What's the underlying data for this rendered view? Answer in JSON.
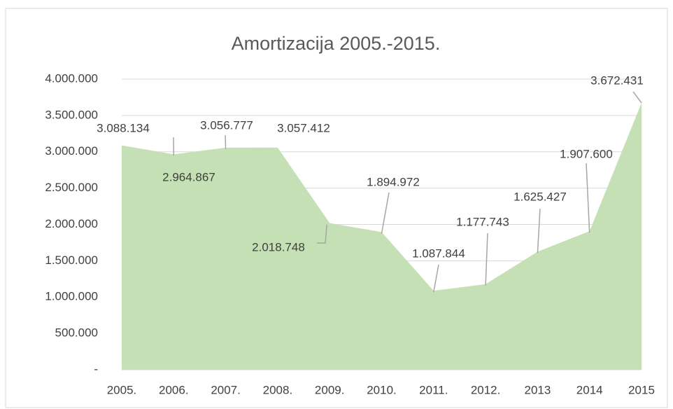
{
  "chart_data": {
    "type": "area",
    "title": "Amortizacija 2005.-2015.",
    "categories": [
      "2005.",
      "2006.",
      "2007.",
      "2008.",
      "2009.",
      "2010.",
      "2011.",
      "2012.",
      "2013",
      "2014",
      "2015"
    ],
    "values": [
      3088134,
      2964867,
      3056777,
      3057412,
      2018748,
      1894972,
      1087844,
      1177743,
      1625427,
      1907600,
      3672431
    ],
    "value_labels": [
      "3.088.134",
      "2.964.867",
      "3.056.777",
      "3.057.412",
      "2.018.748",
      "1.894.972",
      "1.087.844",
      "1.177.743",
      "1.625.427",
      "1.907.600",
      "3.672.431"
    ],
    "color": "#c5e0b4",
    "ylim": [
      0,
      4000000
    ],
    "yticks": [
      {
        "value": 0,
        "label": "-"
      },
      {
        "value": 500000,
        "label": "500.000"
      },
      {
        "value": 1000000,
        "label": "1.000.000"
      },
      {
        "value": 1500000,
        "label": "1.500.000"
      },
      {
        "value": 2000000,
        "label": "2.000.000"
      },
      {
        "value": 2500000,
        "label": "2.500.000"
      },
      {
        "value": 3000000,
        "label": "3.000.000"
      },
      {
        "value": 3500000,
        "label": "3.500.000"
      },
      {
        "value": 4000000,
        "label": "4.000.000"
      }
    ],
    "grid": true
  }
}
